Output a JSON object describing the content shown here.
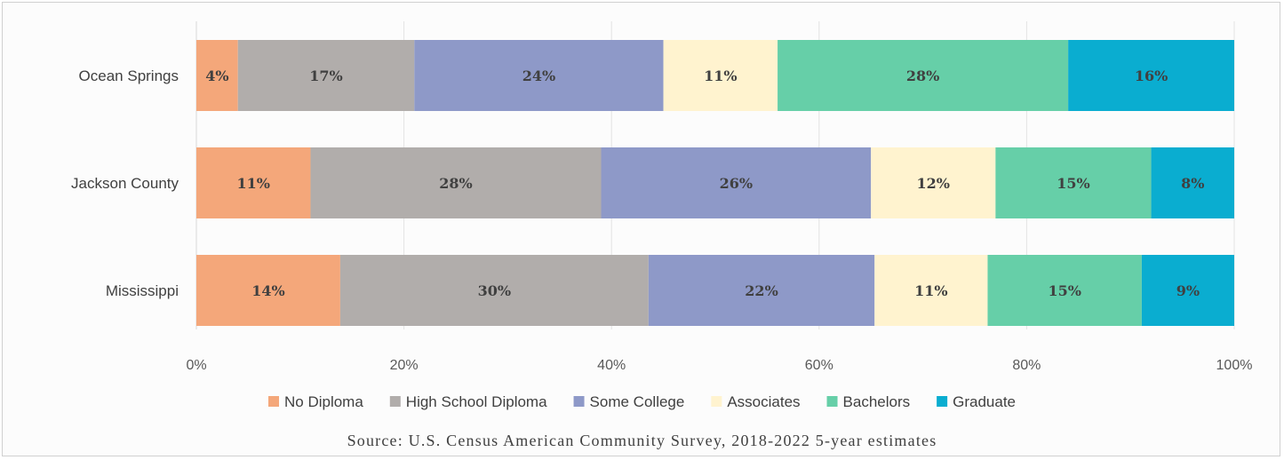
{
  "chart_data": {
    "type": "bar",
    "orientation": "horizontal",
    "stacked": "percent",
    "categories": [
      "Ocean Springs",
      "Jackson County",
      "Mississippi"
    ],
    "series": [
      {
        "name": "No Diploma",
        "color": "#F4A77A",
        "values": [
          4,
          11,
          14
        ],
        "labels": [
          "4%",
          "11%",
          "14%"
        ]
      },
      {
        "name": "High School Diploma",
        "color": "#B1ADAB",
        "values": [
          17,
          28,
          30
        ],
        "labels": [
          "17%",
          "28%",
          "30%"
        ]
      },
      {
        "name": "Some College",
        "color": "#8E99C8",
        "values": [
          24,
          26,
          22
        ],
        "labels": [
          "24%",
          "26%",
          "22%"
        ]
      },
      {
        "name": "Associates",
        "color": "#FFF3CF",
        "values": [
          11,
          12,
          11
        ],
        "labels": [
          "11%",
          "12%",
          "11%"
        ]
      },
      {
        "name": "Bachelors",
        "color": "#66CFA8",
        "values": [
          28,
          15,
          15
        ],
        "labels": [
          "28%",
          "15%",
          "15%"
        ]
      },
      {
        "name": "Graduate",
        "color": "#0AADD0",
        "values": [
          16,
          8,
          9
        ],
        "labels": [
          "16%",
          "8%",
          "9%"
        ]
      }
    ],
    "xlim": [
      0,
      100
    ],
    "x_ticks": [
      "0%",
      "20%",
      "40%",
      "60%",
      "80%",
      "100%"
    ],
    "grid": true,
    "legend_position": "bottom"
  },
  "source_text": "Source: U.S. Census American Community Survey, 2018-2022 5-year estimates"
}
